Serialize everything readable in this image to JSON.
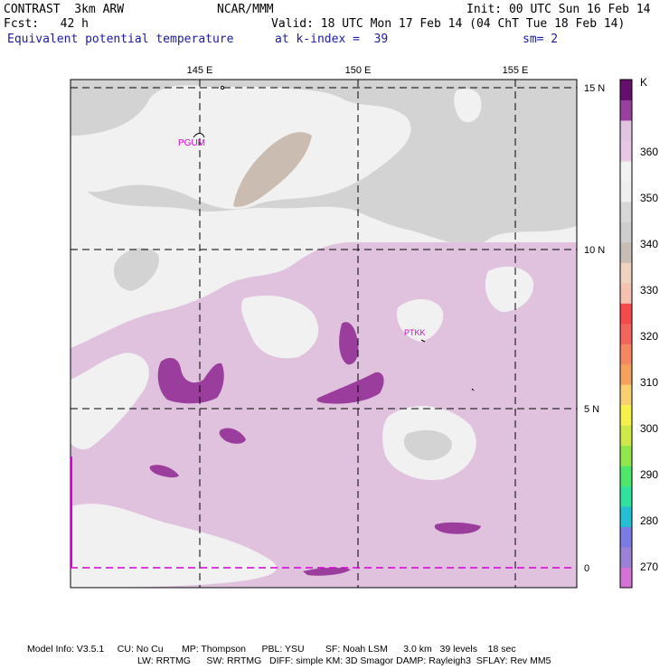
{
  "header": {
    "model": "CONTRAST  3km ARW",
    "org": "NCAR/MMM",
    "init": "Init: 00 UTC Sun 16 Feb 14",
    "fcst": "Fcst:   42 h",
    "valid": "Valid: 18 UTC Mon 17 Feb 14 (04 ChT Tue 18 Feb 14)",
    "field": "Equivalent potential temperature",
    "level": "at k-index =  39",
    "smooth": "sm= 2"
  },
  "map": {
    "lon_labels": [
      "145 E",
      "150 E",
      "155 E"
    ],
    "lat_labels": [
      "15 N",
      "10 N",
      "5 N",
      "0"
    ],
    "stations": [
      {
        "id": "PGUM"
      },
      {
        "id": "PTKK"
      }
    ]
  },
  "colorbar": {
    "unit": "K",
    "labels": [
      "270",
      "280",
      "290",
      "300",
      "310",
      "320",
      "330",
      "340",
      "350",
      "360"
    ],
    "colors": [
      "#d672d6",
      "#9b82d8",
      "#7b7be6",
      "#22bfd6",
      "#2fe39e",
      "#4de86a",
      "#90e84a",
      "#cfe84a",
      "#f7f24a",
      "#f9d070",
      "#f7a25c",
      "#f58860",
      "#f4645c",
      "#f64a4a",
      "#f4c2ae",
      "#efd2bf",
      "#c8bdb5",
      "#cdcdcd",
      "#d7d7d7",
      "#efefef",
      "#f2f2f2",
      "#e8c7e6",
      "#e0c4e0",
      "#9a3f9e",
      "#660e6e"
    ],
    "color_semantics": {
      "lowest": "#d672d6",
      "highest": "#660e6e"
    }
  },
  "footer": {
    "line1": "Model Info: V3.5.1     CU: No Cu       MP: Thompson      PBL: YSU        SF: Noah LSM      3.0 km   39 levels    18 sec",
    "line2": "LW: RRTMG      SW: RRTMG   DIFF: simple KM: 3D Smagor DAMP: Rayleigh3  SFLAY: Rev MM5"
  }
}
